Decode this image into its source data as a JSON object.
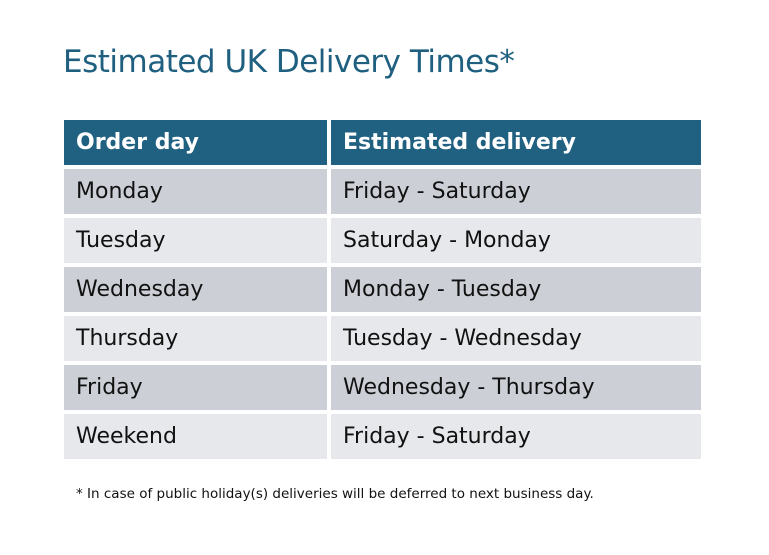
{
  "title": "Estimated UK Delivery Times*",
  "table": {
    "headers": [
      "Order day",
      "Estimated delivery"
    ],
    "rows": [
      [
        "Monday",
        "Friday - Saturday"
      ],
      [
        "Tuesday",
        "Saturday - Monday"
      ],
      [
        "Wednesday",
        "Monday - Tuesday"
      ],
      [
        "Thursday",
        "Tuesday - Wednesday"
      ],
      [
        "Friday",
        "Wednesday - Thursday"
      ],
      [
        "Weekend",
        "Friday - Saturday"
      ]
    ]
  },
  "footnote": "* In case of public holiday(s) deliveries will be deferred to next business day.",
  "colors": {
    "header": "#206081",
    "title": "#1f5f7f",
    "row_dark": "#ccd0d6",
    "row_light": "#e6e8eb"
  }
}
